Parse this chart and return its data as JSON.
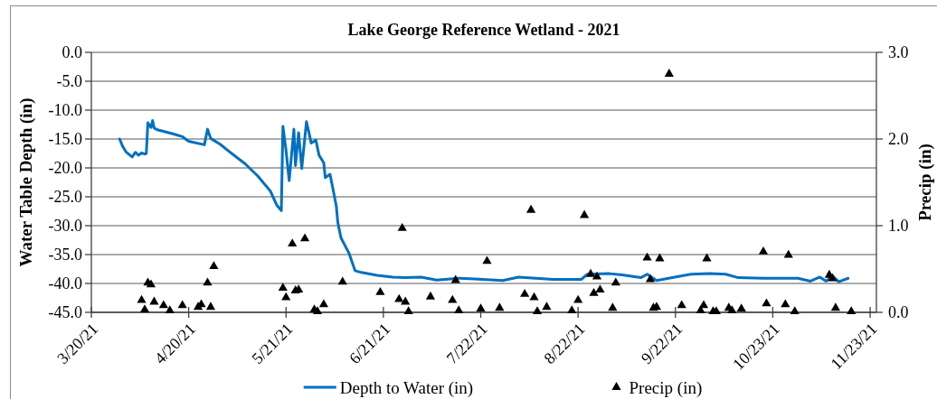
{
  "chart_data": {
    "type": "line",
    "title": "Lake George Reference Wetland - 2021",
    "ylabel": "Water Table Depth (in)",
    "y2label": "Precip (in)",
    "xlim": [
      "2021-03-20",
      "2021-11-25"
    ],
    "xticks": [
      {
        "value": "2021-03-20",
        "label": "3/20/21"
      },
      {
        "value": "2021-04-20",
        "label": "4/20/21"
      },
      {
        "value": "2021-05-21",
        "label": "5/21/21"
      },
      {
        "value": "2021-06-21",
        "label": "6/21/21"
      },
      {
        "value": "2021-07-22",
        "label": "7/22/21"
      },
      {
        "value": "2021-08-22",
        "label": "8/22/21"
      },
      {
        "value": "2021-09-22",
        "label": "9/22/21"
      },
      {
        "value": "2021-10-23",
        "label": "10/23/21"
      },
      {
        "value": "2021-11-23",
        "label": "11/23/21"
      }
    ],
    "ylim": [
      -45,
      0
    ],
    "yticks": [
      {
        "value": -45,
        "label": "-45.0"
      },
      {
        "value": -40,
        "label": "-40.0"
      },
      {
        "value": -35,
        "label": "-35.0"
      },
      {
        "value": -30,
        "label": "-30.0"
      },
      {
        "value": -25,
        "label": "-25.0"
      },
      {
        "value": -20,
        "label": "-20.0"
      },
      {
        "value": -15,
        "label": "-15.0"
      },
      {
        "value": -10,
        "label": "-10.0"
      },
      {
        "value": -5,
        "label": "-5.0"
      },
      {
        "value": 0,
        "label": "0.0"
      }
    ],
    "y2lim": [
      0,
      3
    ],
    "y2ticks": [
      {
        "value": 0,
        "label": "0.0"
      },
      {
        "value": 1,
        "label": "1.0"
      },
      {
        "value": 2,
        "label": "2.0"
      },
      {
        "value": 3,
        "label": "3.0"
      }
    ],
    "grid": "y",
    "legend": "bottom",
    "series": [
      {
        "name": "Depth to Water (in)",
        "type": "line",
        "color": "#0070c0",
        "x": [
          "2021-03-29",
          "2021-03-30",
          "2021-03-31",
          "2021-04-02",
          "2021-04-03",
          "2021-04-04",
          "2021-04-05",
          "2021-04-06",
          "2021-04-06T12:00",
          "2021-04-07",
          "2021-04-08",
          "2021-04-08T12:00",
          "2021-04-09",
          "2021-04-10",
          "2021-04-15",
          "2021-04-18",
          "2021-04-20",
          "2021-04-25",
          "2021-04-26",
          "2021-04-27",
          "2021-04-30",
          "2021-05-03",
          "2021-05-08",
          "2021-05-12",
          "2021-05-16",
          "2021-05-18",
          "2021-05-19T12:00",
          "2021-05-20",
          "2021-05-21",
          "2021-05-22",
          "2021-05-23T12:00",
          "2021-05-24",
          "2021-05-25",
          "2021-05-26",
          "2021-05-27T12:00",
          "2021-05-28T12:00",
          "2021-05-29",
          "2021-05-30T12:00",
          "2021-05-31T12:00",
          "2021-06-02",
          "2021-06-02T12:00",
          "2021-06-04",
          "2021-06-05",
          "2021-06-06",
          "2021-06-06T12:00",
          "2021-06-07T12:00",
          "2021-06-10",
          "2021-06-12",
          "2021-06-14",
          "2021-06-19",
          "2021-06-24",
          "2021-06-28",
          "2021-07-03",
          "2021-07-08",
          "2021-07-15",
          "2021-07-20",
          "2021-07-29",
          "2021-08-03",
          "2021-08-14",
          "2021-08-23",
          "2021-08-25",
          "2021-09-01",
          "2021-09-05",
          "2021-09-11",
          "2021-09-13",
          "2021-09-16",
          "2021-09-21",
          "2021-09-27",
          "2021-10-03",
          "2021-10-08",
          "2021-10-12",
          "2021-10-20",
          "2021-10-31",
          "2021-11-04",
          "2021-11-07",
          "2021-11-09",
          "2021-11-11",
          "2021-11-13",
          "2021-11-16"
        ],
        "values": [
          -15.0,
          -16.3,
          -17.2,
          -18.1,
          -17.3,
          -17.8,
          -17.4,
          -17.6,
          -17.5,
          -12.2,
          -13.0,
          -11.8,
          -13.1,
          -13.4,
          -14.1,
          -14.6,
          -15.4,
          -16.0,
          -13.3,
          -14.9,
          -15.9,
          -17.2,
          -19.3,
          -21.4,
          -24.0,
          -26.4,
          -27.4,
          -12.8,
          -17.0,
          -22.2,
          -13.3,
          -19.6,
          -13.9,
          -20.1,
          -12.0,
          -14.4,
          -15.7,
          -15.2,
          -17.8,
          -19.1,
          -21.7,
          -21.1,
          -23.8,
          -26.6,
          -29.5,
          -32.1,
          -34.7,
          -37.8,
          -38.1,
          -38.6,
          -38.9,
          -39.0,
          -38.9,
          -39.4,
          -39.1,
          -39.2,
          -39.5,
          -38.9,
          -39.3,
          -39.3,
          -38.4,
          -38.3,
          -38.5,
          -39.0,
          -38.4,
          -39.5,
          -39.0,
          -38.4,
          -38.3,
          -38.4,
          -39.0,
          -39.1,
          -39.1,
          -39.6,
          -38.9,
          -39.6,
          -38.7,
          -39.7,
          -39.1
        ]
      },
      {
        "name": "Precip (in)",
        "type": "scatter",
        "axis": "y2",
        "marker": "triangle",
        "color": "#000000",
        "x": [
          "2021-04-05",
          "2021-04-06",
          "2021-04-07",
          "2021-04-08",
          "2021-04-09",
          "2021-04-12",
          "2021-04-14",
          "2021-04-18",
          "2021-04-23",
          "2021-04-24",
          "2021-04-26",
          "2021-04-27",
          "2021-04-28",
          "2021-05-20",
          "2021-05-21",
          "2021-05-23",
          "2021-05-24",
          "2021-05-25",
          "2021-05-27",
          "2021-05-30",
          "2021-05-31",
          "2021-06-02",
          "2021-06-08",
          "2021-06-20",
          "2021-06-26",
          "2021-06-27",
          "2021-06-28",
          "2021-06-29",
          "2021-07-06",
          "2021-07-13",
          "2021-07-14",
          "2021-07-15",
          "2021-07-22",
          "2021-07-24",
          "2021-07-28",
          "2021-08-05",
          "2021-08-07",
          "2021-08-08",
          "2021-08-09",
          "2021-08-12",
          "2021-08-20",
          "2021-08-22",
          "2021-08-24",
          "2021-08-26",
          "2021-08-27",
          "2021-08-28",
          "2021-08-29",
          "2021-09-02",
          "2021-09-03",
          "2021-09-13",
          "2021-09-14",
          "2021-09-15",
          "2021-09-16",
          "2021-09-17",
          "2021-09-20",
          "2021-09-24",
          "2021-09-30",
          "2021-10-01",
          "2021-10-02",
          "2021-10-04",
          "2021-10-05",
          "2021-10-09",
          "2021-10-10",
          "2021-10-13",
          "2021-10-20",
          "2021-10-21",
          "2021-10-27",
          "2021-10-28",
          "2021-10-30",
          "2021-11-10",
          "2021-11-11",
          "2021-11-12",
          "2021-11-17"
        ],
        "values": [
          0.14,
          0.03,
          0.34,
          0.32,
          0.12,
          0.08,
          0.02,
          0.08,
          0.06,
          0.09,
          0.34,
          0.06,
          0.53,
          0.28,
          0.17,
          0.79,
          0.25,
          0.26,
          0.85,
          0.03,
          0.01,
          0.09,
          0.35,
          0.23,
          0.15,
          0.97,
          0.12,
          0.01,
          0.18,
          0.14,
          0.37,
          0.02,
          0.04,
          0.59,
          0.05,
          0.21,
          1.18,
          0.17,
          0.01,
          0.06,
          0.02,
          0.14,
          1.12,
          0.44,
          0.22,
          0.41,
          0.26,
          0.05,
          0.34,
          0.63,
          0.38,
          0.05,
          0.06,
          0.62,
          2.75,
          0.08,
          0.02,
          0.08,
          0.62,
          0.01,
          0.01,
          0.05,
          0.02,
          0.04,
          0.7,
          0.1,
          0.09,
          0.66,
          0.01,
          0.43,
          0.39,
          0.05,
          0.01
        ]
      }
    ]
  }
}
